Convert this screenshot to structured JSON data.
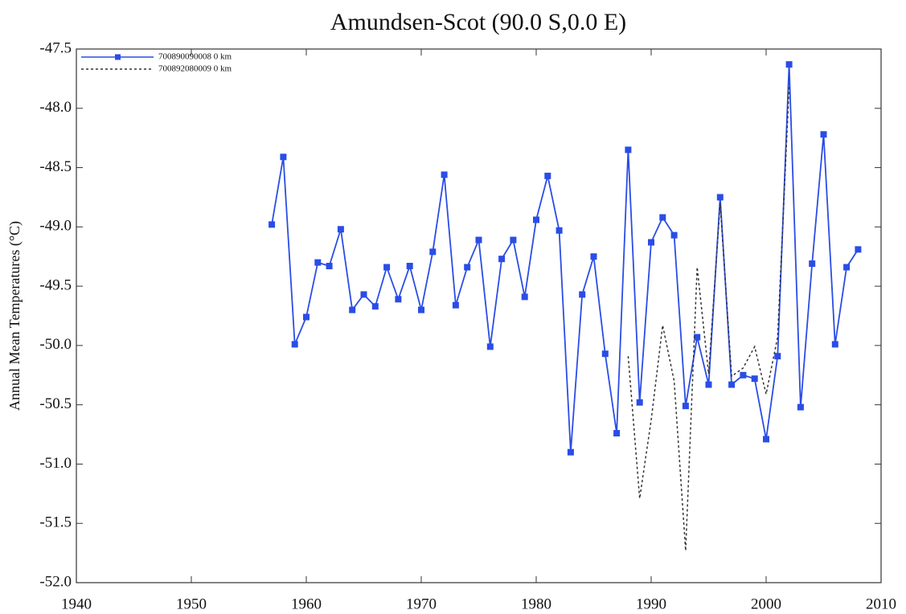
{
  "chart_data": {
    "type": "line",
    "title": "Amundsen-Scot (90.0 S,0.0 E)",
    "y_label": "Annual Mean Temperatures (°C)",
    "xlim": [
      1940,
      2010
    ],
    "xticks": [
      1940,
      1950,
      1960,
      1970,
      1980,
      1990,
      2000,
      2010
    ],
    "ylim": [
      -52.0,
      -47.5
    ],
    "yticks": [
      -47.5,
      {
        "value": -48.0,
        "label": "-48.0"
      },
      -48.5,
      {
        "value": -49.0,
        "label": "-49.0"
      },
      -49.5,
      {
        "value": -50.0,
        "label": "-50.0"
      },
      -50.5,
      {
        "value": -51.0,
        "label": "-51.0"
      },
      -51.5,
      {
        "value": -52.0,
        "label": "-52.0"
      }
    ],
    "grid": false,
    "legend": "upper left",
    "series": [
      {
        "name": "700890090008 0 km",
        "color": "#2a4de6",
        "line_style": "solid",
        "marker": "square",
        "x": [
          1957,
          1958,
          1959,
          1960,
          1961,
          1962,
          1963,
          1964,
          1965,
          1966,
          1967,
          1968,
          1969,
          1970,
          1971,
          1972,
          1973,
          1974,
          1975,
          1976,
          1977,
          1978,
          1979,
          1980,
          1981,
          1982,
          1983,
          1984,
          1985,
          1986,
          1987,
          1988,
          1989,
          1990,
          1991,
          1992,
          1993,
          1994,
          1995,
          1996,
          1997,
          1998,
          1999,
          2000,
          2001,
          2002,
          2003,
          2004,
          2005,
          2006,
          2007,
          2008
        ],
        "values": [
          -48.98,
          -48.41,
          -49.99,
          -49.76,
          -49.3,
          -49.33,
          -49.02,
          -49.7,
          -49.57,
          -49.67,
          -49.34,
          -49.61,
          -49.33,
          -49.7,
          -49.21,
          -48.56,
          -49.66,
          -49.34,
          -49.11,
          -50.01,
          -49.27,
          -49.11,
          -49.59,
          -48.94,
          -48.57,
          -49.03,
          -50.9,
          -49.57,
          -49.25,
          -50.07,
          -50.74,
          -48.35,
          -50.48,
          -49.13,
          -48.92,
          -49.07,
          -50.51,
          -49.93,
          -50.33,
          -48.75,
          -50.33,
          -50.25,
          -50.28,
          -50.79,
          -50.09,
          -47.63,
          -50.52,
          -49.31,
          -48.22,
          -49.99,
          -49.34,
          -49.19
        ]
      },
      {
        "name": "700892080009 0 km",
        "color": "#333333",
        "line_style": "dotted",
        "marker": "none",
        "x": [
          1988,
          1989,
          1990,
          1991,
          1992,
          1993,
          1994,
          1995,
          1996,
          1997,
          1998,
          1999,
          2000,
          2001,
          2002
        ],
        "values": [
          -50.09,
          -51.29,
          -50.63,
          -49.83,
          -50.3,
          -51.73,
          -49.34,
          -50.24,
          -48.8,
          -50.26,
          -50.19,
          -50.01,
          -50.41,
          -49.93,
          -47.82
        ]
      }
    ]
  }
}
